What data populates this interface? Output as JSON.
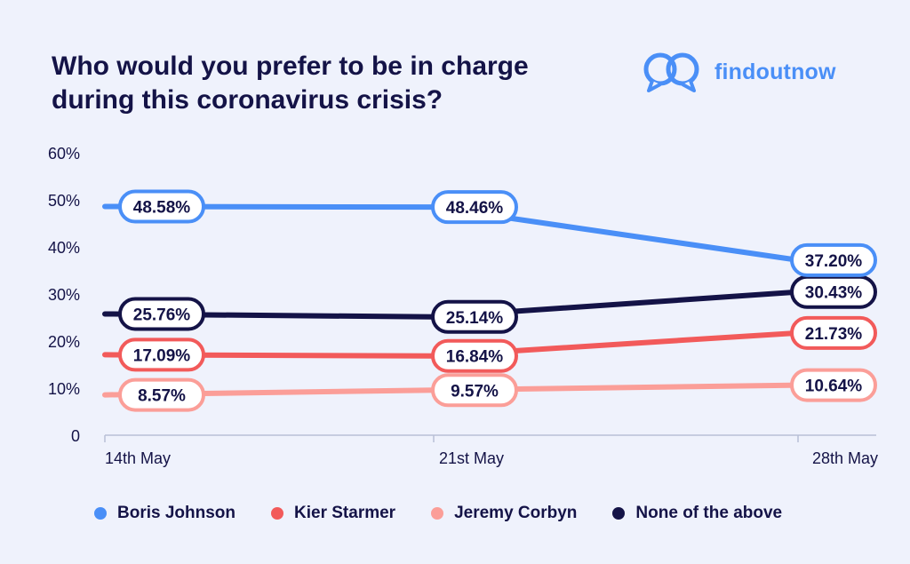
{
  "brand": {
    "name": "findoutnow",
    "icon": "speech-bubbles-icon",
    "color": "#4a8ff7"
  },
  "chart_data": {
    "type": "line",
    "title": "Who would you prefer to be in charge during this coronavirus crisis?",
    "title_lines": [
      "Who would you prefer to be in charge",
      "during this coronavirus crisis?"
    ],
    "categories": [
      "14th May",
      "21st May",
      "28th May"
    ],
    "ylim": [
      0,
      60
    ],
    "yticks": [
      0,
      10,
      20,
      30,
      40,
      50,
      60
    ],
    "ytick_labels": [
      "0",
      "10%",
      "20%",
      "30%",
      "40%",
      "50%",
      "60%"
    ],
    "grid": false,
    "legend_position": "bottom",
    "series": [
      {
        "name": "Boris Johnson",
        "color": "#4a8ff7",
        "values": [
          48.58,
          48.46,
          37.2
        ],
        "labels": [
          "48.58%",
          "48.46%",
          "37.20%"
        ]
      },
      {
        "name": "Kier Starmer",
        "color": "#f25a5a",
        "values": [
          17.09,
          16.84,
          21.73
        ],
        "labels": [
          "17.09%",
          "16.84%",
          "21.73%"
        ]
      },
      {
        "name": "Jeremy Corbyn",
        "color": "#fb9e98",
        "values": [
          8.57,
          9.57,
          10.64
        ],
        "labels": [
          "8.57%",
          "9.57%",
          "10.64%"
        ]
      },
      {
        "name": "None of the above",
        "color": "#141347",
        "values": [
          25.76,
          25.14,
          30.43
        ],
        "labels": [
          "25.76%",
          "25.14%",
          "30.43%"
        ]
      }
    ]
  }
}
